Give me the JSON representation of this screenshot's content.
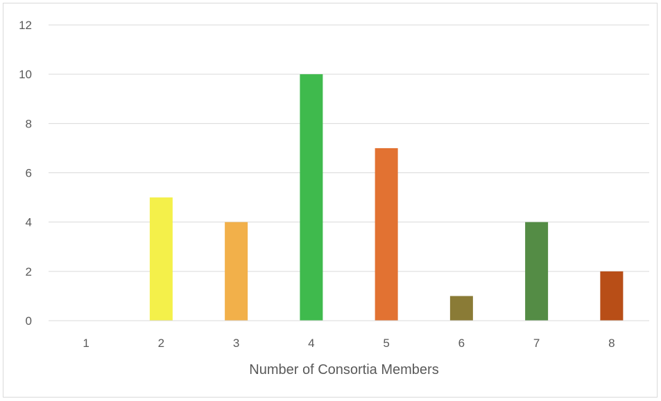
{
  "chart_data": {
    "type": "bar",
    "categories": [
      "1",
      "2",
      "3",
      "4",
      "5",
      "6",
      "7",
      "8"
    ],
    "values": [
      0,
      5,
      4,
      10,
      7,
      1,
      4,
      2
    ],
    "colors": [
      "#f4f04a",
      "#f4f04a",
      "#f2b04a",
      "#3fba4d",
      "#e27232",
      "#8a7b36",
      "#548c45",
      "#b84e17"
    ],
    "title": "",
    "xlabel": "Number of Consortia Members",
    "ylabel": "",
    "ylim": [
      0,
      12
    ],
    "yticks": [
      "0",
      "2",
      "4",
      "6",
      "8",
      "10",
      "12"
    ],
    "grid": true,
    "legend": "none"
  }
}
